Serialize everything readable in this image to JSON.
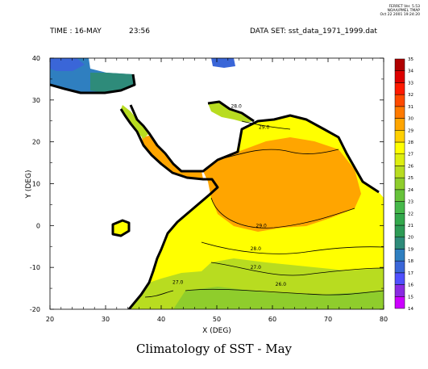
{
  "header": {
    "stamp": [
      "FERRET Ver. 5.53",
      "NOAA/PMEL TMAP",
      "Oct 22 2001 19:24:20"
    ],
    "time_label": "TIME : 16-MAY",
    "time_value": "23:56",
    "dataset": "DATA SET: sst_data_1971_1999.dat"
  },
  "chart_data": {
    "type": "heatmap",
    "title": "Climatology of SST - May",
    "xlabel": "X (DEG)",
    "ylabel": "Y (DEG)",
    "xlim": [
      20,
      80
    ],
    "ylim": [
      -20,
      40
    ],
    "xticks": [
      20,
      30,
      40,
      50,
      60,
      70,
      80
    ],
    "yticks": [
      -20,
      -10,
      0,
      10,
      20,
      30,
      40
    ],
    "colorbar": {
      "levels": [
        14,
        15,
        16,
        17,
        18,
        19,
        20,
        21,
        22,
        23,
        24,
        25,
        26,
        27,
        28,
        29,
        30,
        31,
        32,
        33,
        34,
        35
      ],
      "colors": [
        "#cc00ff",
        "#8a2be2",
        "#5050ff",
        "#3a66d8",
        "#2f7fc0",
        "#2e8b7a",
        "#2e9b56",
        "#33a84c",
        "#46b84a",
        "#66c23a",
        "#8fcd2c",
        "#b8dc20",
        "#ddee10",
        "#ffff00",
        "#ffd000",
        "#ffa500",
        "#ff7a00",
        "#ff4a00",
        "#ff1a00",
        "#dd0000",
        "#b00000"
      ]
    },
    "contour_labels": [
      {
        "text": "29.0",
        "x": 58.5,
        "y": 23.5
      },
      {
        "text": "28.0",
        "x": 53.5,
        "y": 28.5
      },
      {
        "text": "29.0",
        "x": 58.0,
        "y": 0.0
      },
      {
        "text": "28.0",
        "x": 57.0,
        "y": -5.5
      },
      {
        "text": "27.0",
        "x": 57.0,
        "y": -10.0
      },
      {
        "text": "27.0",
        "x": 43.0,
        "y": -13.5
      },
      {
        "text": "26.0",
        "x": 61.5,
        "y": -14.0
      }
    ]
  }
}
